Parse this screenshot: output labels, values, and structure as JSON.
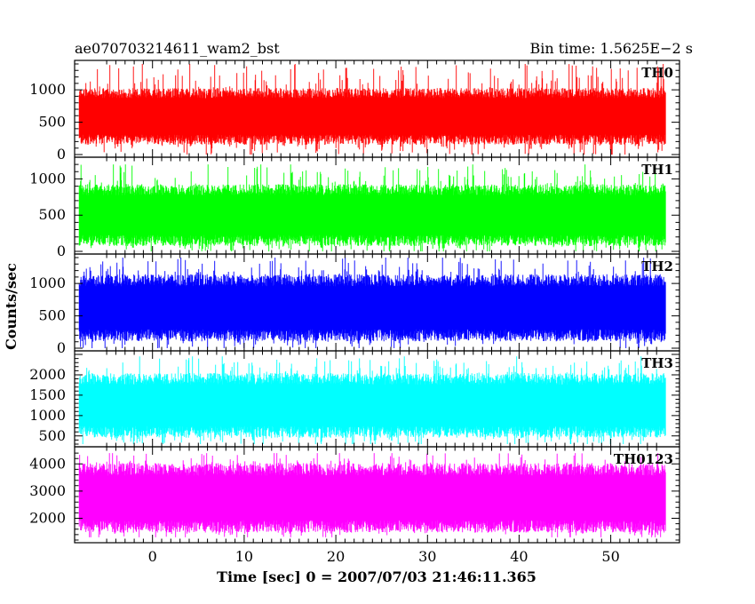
{
  "chart_data": {
    "type": "line",
    "title_left": "ae070703214611_wam2_bst",
    "title_right": "Bin time: 1.5625E−2 s",
    "xlabel": "Time [sec] 0 = 2007/07/03 21:46:11.365",
    "ylabel": "Counts/sec",
    "xlim": [
      -8.5,
      57.5
    ],
    "x_data_range": [
      -8.0,
      56.0
    ],
    "x_ticks": [
      0,
      10,
      20,
      30,
      40,
      50
    ],
    "x_tick_labels": [
      "0",
      "10",
      "20",
      "30",
      "40",
      "50"
    ],
    "grid": false,
    "panels": [
      {
        "label": "TH0",
        "color": "#ff0000",
        "ylim": [
          0,
          1400
        ],
        "y_ticks": [
          0,
          500,
          1000
        ],
        "y_tick_labels": [
          "0",
          "500",
          "1000"
        ],
        "typical_low": 230,
        "typical_high": 950,
        "min": 0,
        "max": 1400
      },
      {
        "label": "TH1",
        "color": "#00ff00",
        "ylim": [
          0,
          1250
        ],
        "y_ticks": [
          0,
          500,
          1000
        ],
        "y_tick_labels": [
          "0",
          "500",
          "1000"
        ],
        "typical_low": 150,
        "typical_high": 850,
        "min": 0,
        "max": 1200
      },
      {
        "label": "TH2",
        "color": "#0000ff",
        "ylim": [
          0,
          1400
        ],
        "y_ticks": [
          0,
          500,
          1000
        ],
        "y_tick_labels": [
          "0",
          "500",
          "1000"
        ],
        "typical_low": 200,
        "typical_high": 1050,
        "min": 0,
        "max": 1400
      },
      {
        "label": "TH3",
        "color": "#00ffff",
        "ylim": [
          300,
          2500
        ],
        "y_ticks": [
          500,
          1000,
          1500,
          2000
        ],
        "y_tick_labels": [
          "500",
          "1000",
          "1500",
          "2000"
        ],
        "typical_low": 600,
        "typical_high": 1900,
        "min": 300,
        "max": 2450
      },
      {
        "label": "TH0123",
        "color": "#ff00ff",
        "ylim": [
          1200,
          4500
        ],
        "y_ticks": [
          2000,
          3000,
          4000
        ],
        "y_tick_labels": [
          "2000",
          "3000",
          "4000"
        ],
        "typical_low": 1700,
        "typical_high": 3800,
        "min": 1300,
        "max": 4400
      }
    ]
  }
}
